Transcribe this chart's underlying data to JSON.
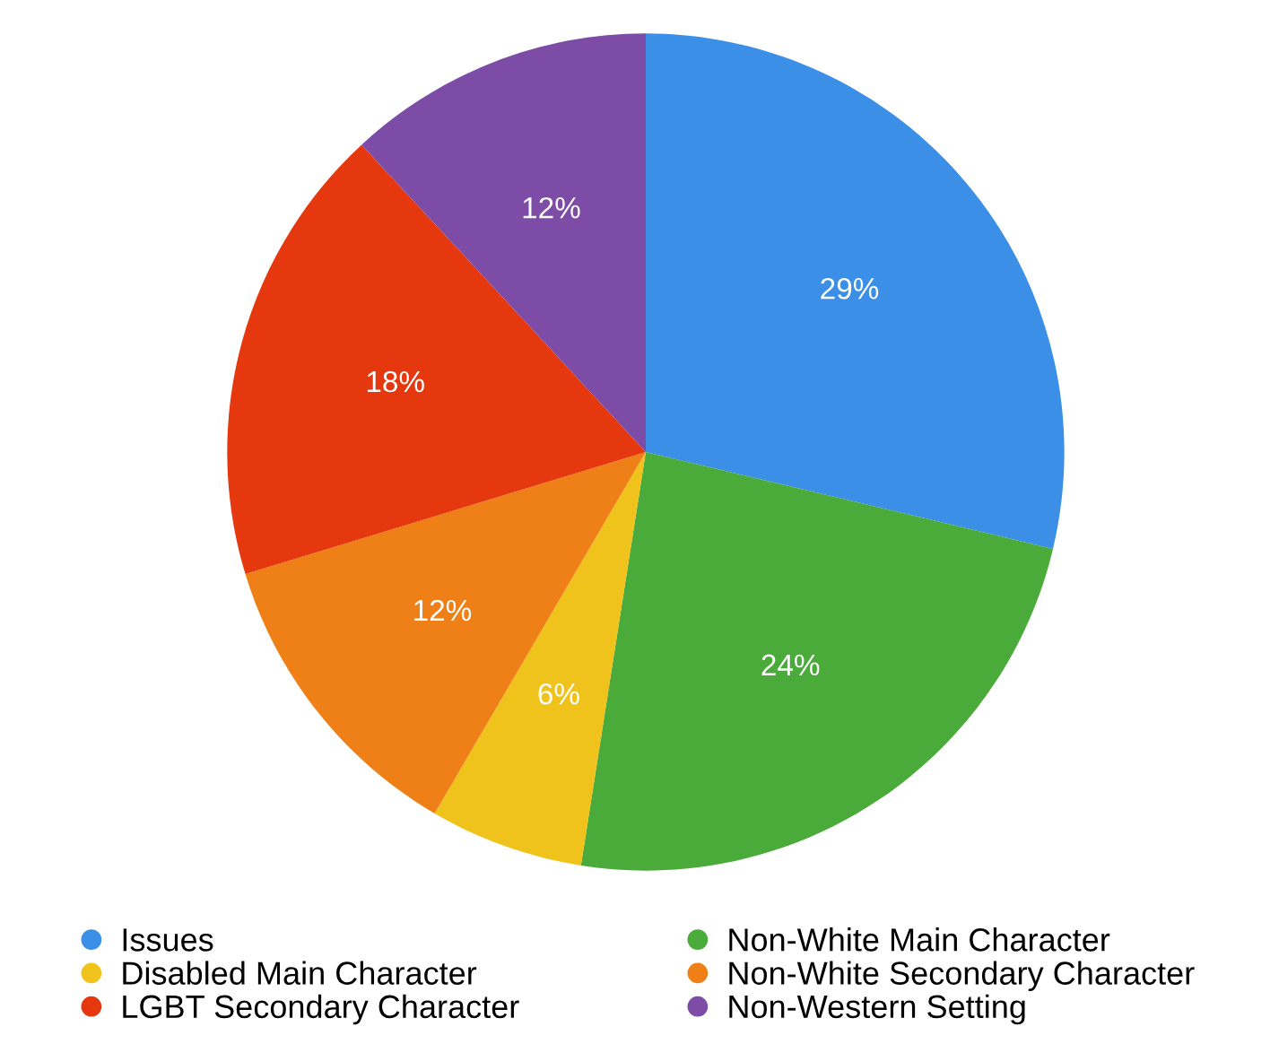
{
  "chart_data": {
    "type": "pie",
    "categories": [
      "Issues",
      "Non-White Main Character",
      "Disabled Main Character",
      "Non-White Secondary Character",
      "LGBT Secondary Character",
      "Non-Western Setting"
    ],
    "values": [
      29,
      24,
      6,
      12,
      18,
      12
    ],
    "colors": [
      "#3b8fe6",
      "#4aaa3a",
      "#f0c21c",
      "#ef7f17",
      "#e5380f",
      "#7d4ca6"
    ],
    "value_labels": [
      "29%",
      "24%",
      "6%",
      "12%",
      "18%",
      "12%"
    ],
    "legend": "bottom"
  }
}
